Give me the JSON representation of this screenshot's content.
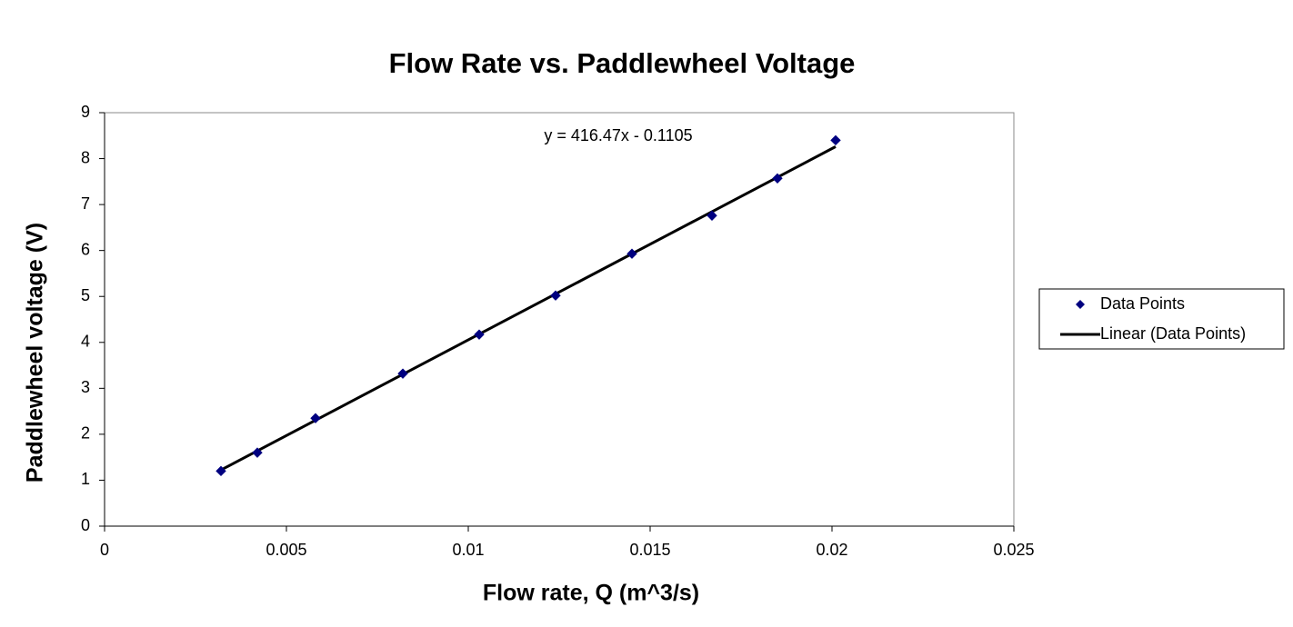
{
  "chart_data": {
    "type": "scatter",
    "title": "Flow Rate vs. Paddlewheel Voltage",
    "x_label": "Flow rate, Q (m^3/s)",
    "y_label": "Paddlewheel voltage (V)",
    "series": [
      {
        "name": "Data Points",
        "color": "#000080",
        "x": [
          0.0032,
          0.0042,
          0.0058,
          0.0082,
          0.0103,
          0.0124,
          0.0145,
          0.0167,
          0.0185,
          0.0201
        ],
        "values": [
          1.2,
          1.6,
          2.35,
          3.32,
          4.17,
          5.02,
          5.93,
          6.76,
          7.57,
          8.4
        ]
      }
    ],
    "trendline": {
      "name": "Linear (Data Points)",
      "color": "#000000",
      "slope": 416.47,
      "intercept": -0.1105,
      "equation": "y = 416.47x - 0.1105"
    },
    "xlim": [
      0,
      0.025
    ],
    "xticks": [
      0,
      0.005,
      0.01,
      0.015,
      0.02,
      0.025
    ],
    "ylim": [
      0,
      9
    ],
    "yticks": [
      0,
      1,
      2,
      3,
      4,
      5,
      6,
      7,
      8,
      9
    ],
    "grid": false,
    "legend": "right"
  }
}
